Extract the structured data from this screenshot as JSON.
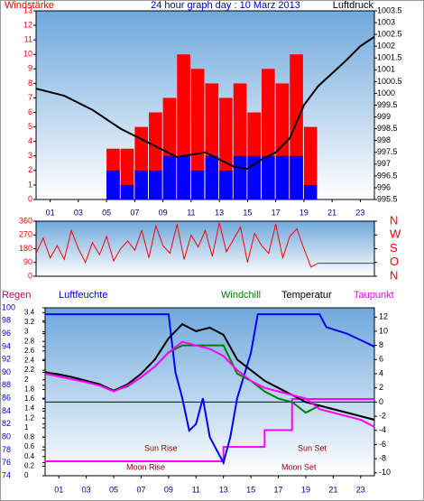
{
  "chart_data": [
    {
      "type": "bar",
      "title": "24 hour graph day : 10 Marz 2013",
      "y_label": "Windstärke",
      "y2_label": "Luftdruck",
      "x": [
        0,
        1,
        2,
        3,
        4,
        5,
        6,
        7,
        8,
        9,
        10,
        11,
        12,
        13,
        14,
        15,
        16,
        17,
        18,
        19,
        20,
        21,
        22,
        23
      ],
      "xlim": [
        0,
        24
      ],
      "xticks": [
        {
          "value": 1,
          "label": "01"
        },
        {
          "value": 3,
          "label": "03"
        },
        {
          "value": 5,
          "label": "05"
        },
        {
          "value": 7,
          "label": "07"
        },
        {
          "value": 9,
          "label": "09"
        },
        {
          "value": 11,
          "label": "11"
        },
        {
          "value": 13,
          "label": "13"
        },
        {
          "value": 15,
          "label": "15"
        },
        {
          "value": 17,
          "label": "17"
        },
        {
          "value": 19,
          "label": "19"
        },
        {
          "value": 21,
          "label": "21"
        },
        {
          "value": 23,
          "label": "23"
        }
      ],
      "ylim": [
        0,
        13
      ],
      "yticks": [
        0,
        1,
        2,
        3,
        4,
        5,
        6,
        7,
        8,
        9,
        10,
        11,
        12,
        13
      ],
      "y2lim": [
        995.5,
        1003.5
      ],
      "y2ticks": [
        995.5,
        996,
        996.5,
        997,
        997.5,
        998,
        998.5,
        999,
        999.5,
        1000,
        1000.5,
        1001,
        1001.5,
        1002,
        1002.5,
        1003,
        1003.5
      ],
      "series": [
        {
          "color": "#ff0000",
          "values": [
            0,
            0,
            0,
            0,
            0,
            3.5,
            3.5,
            5,
            6,
            7,
            10,
            9,
            8,
            7,
            8,
            6,
            9,
            8,
            10,
            5,
            0,
            0,
            0,
            0
          ]
        },
        {
          "color": "#0000ff",
          "values": [
            0,
            0,
            0,
            0,
            0,
            2,
            1,
            2,
            2,
            3,
            3,
            2,
            3,
            2,
            3,
            3,
            3,
            3,
            3,
            1,
            0,
            0,
            0,
            0
          ]
        },
        {
          "type": "line",
          "axis": "y2",
          "color": "#000000",
          "x": [
            0,
            2,
            4,
            5,
            6,
            8,
            10,
            11,
            12,
            13,
            14,
            15,
            16,
            17,
            18,
            19,
            20,
            21,
            22,
            23,
            24
          ],
          "values": [
            1000.2,
            999.9,
            999.3,
            998.9,
            998.5,
            997.9,
            997.3,
            997.4,
            997.5,
            997.2,
            996.9,
            996.8,
            997.2,
            997.5,
            998.1,
            999.5,
            1000.3,
            1000.85,
            1001.4,
            1002.0,
            1002.4
          ]
        }
      ]
    },
    {
      "type": "line",
      "x": [
        0,
        0.5,
        1,
        1.5,
        2,
        2.5,
        3,
        3.5,
        4,
        4.5,
        5,
        5.5,
        6,
        6.5,
        7,
        7.5,
        8,
        8.5,
        9,
        9.5,
        10,
        10.5,
        11,
        11.5,
        12,
        12.5,
        13,
        13.5,
        14,
        14.5,
        15,
        15.5,
        16,
        16.5,
        17,
        17.5,
        18,
        18.5,
        19,
        19.5,
        20,
        20.5,
        21,
        21.5,
        22,
        22.5,
        23,
        23.5,
        24
      ],
      "xlim": [
        0,
        24
      ],
      "ylim": [
        0,
        360
      ],
      "yticks": [
        0,
        90,
        180,
        270,
        360
      ],
      "y2lim": [
        0,
        360
      ],
      "y2ticks": [
        {
          "value": 0,
          "label": "N"
        },
        {
          "value": 90,
          "label": "O"
        },
        {
          "value": 180,
          "label": "S"
        },
        {
          "value": 270,
          "label": "W"
        },
        {
          "value": 360,
          "label": "N"
        }
      ],
      "series": [
        {
          "color": "#ff0000",
          "values": [
            150,
            250,
            120,
            200,
            110,
            300,
            180,
            90,
            220,
            140,
            260,
            100,
            180,
            230,
            170,
            300,
            120,
            330,
            200,
            150,
            340,
            110,
            270,
            190,
            300,
            130,
            350,
            160,
            240,
            320,
            90,
            280,
            200,
            150,
            340,
            120,
            260,
            310,
            180,
            60,
            85,
            85,
            85,
            85,
            85,
            85,
            85,
            85,
            85
          ]
        }
      ]
    },
    {
      "type": "line",
      "xlim": [
        0,
        24
      ],
      "xticks": [
        {
          "value": 1,
          "label": "01"
        },
        {
          "value": 3,
          "label": "03"
        },
        {
          "value": 5,
          "label": "05"
        },
        {
          "value": 7,
          "label": "07"
        },
        {
          "value": 9,
          "label": "09"
        },
        {
          "value": 11,
          "label": "11"
        },
        {
          "value": 13,
          "label": "13"
        },
        {
          "value": 15,
          "label": "15"
        },
        {
          "value": 17,
          "label": "17"
        },
        {
          "value": 19,
          "label": "19"
        },
        {
          "value": 21,
          "label": "21"
        },
        {
          "value": 23,
          "label": "23"
        }
      ],
      "ylim": [
        74,
        100
      ],
      "yticks": [
        74,
        76,
        78,
        80,
        82,
        84,
        86,
        88,
        90,
        92,
        94,
        96,
        98,
        100
      ],
      "rain_lim": [
        0,
        3.5
      ],
      "rain_ticks": [
        0,
        0.2,
        0.4,
        0.6,
        0.8,
        1,
        1.2,
        1.4,
        1.6,
        1.8,
        2,
        2.2,
        2.4,
        2.6,
        2.8,
        3,
        3.2,
        3.4
      ],
      "y2lim": [
        -10.4,
        13.3
      ],
      "y2ticks": [
        -10,
        -8,
        -6,
        -4,
        -2,
        0,
        2,
        4,
        6,
        8,
        10,
        12
      ],
      "annotations": [
        "Sun Rise",
        "Moon Rise",
        "Sun Set",
        "Moon Set"
      ],
      "series": [
        {
          "name": "Regen",
          "color": "#ff00ff",
          "axis": "rain",
          "step": true,
          "x": [
            0,
            1,
            2,
            3,
            4,
            5,
            6,
            7,
            8,
            9,
            10,
            11,
            12,
            13,
            14,
            15,
            16,
            17,
            18,
            19,
            20,
            21,
            22,
            23
          ],
          "values": [
            0.3,
            0.3,
            0.3,
            0.3,
            0.3,
            0.3,
            0.3,
            0.3,
            0.3,
            0.3,
            0.3,
            0.3,
            0.3,
            0.6,
            0.6,
            0.6,
            0.95,
            0.95,
            1.6,
            1.6,
            1.6,
            1.6,
            1.6,
            1.6
          ]
        },
        {
          "name": "Luftfeuchte",
          "color": "#0000ff",
          "axis": "y",
          "x": [
            0,
            9,
            9.5,
            10,
            10.5,
            11,
            11.5,
            12,
            12.5,
            13,
            13.5,
            14,
            15,
            15.5,
            20,
            20.5,
            22,
            23,
            24
          ],
          "values": [
            99,
            99,
            90,
            86,
            81,
            82,
            86,
            80,
            78,
            76,
            80,
            86,
            93,
            99,
            99,
            97,
            96,
            95,
            94
          ]
        },
        {
          "name": "Windchill",
          "color": "#008000",
          "axis": "y2",
          "x": [
            0,
            1,
            2,
            3,
            4,
            5,
            6,
            7,
            8,
            9,
            10,
            11,
            12,
            13,
            14,
            15,
            16,
            17,
            18,
            19,
            20,
            21,
            22,
            23,
            24
          ],
          "values": [
            4.2,
            3.9,
            3.5,
            3.0,
            2.5,
            1.6,
            2.2,
            3.5,
            5,
            7,
            8,
            8,
            8,
            8,
            4,
            3,
            1.5,
            0.5,
            0,
            -1.5,
            -0.5,
            -1,
            -1.5,
            -2,
            -2.5
          ]
        },
        {
          "name": "Temperatur",
          "color": "#000000",
          "axis": "y2",
          "x": [
            0,
            1,
            2,
            3,
            4,
            5,
            6,
            7,
            8,
            9,
            10,
            11,
            12,
            13,
            14,
            15,
            16,
            17,
            18,
            19,
            20,
            21,
            22,
            23,
            24
          ],
          "values": [
            4.2,
            3.9,
            3.5,
            3.0,
            2.5,
            1.6,
            2.5,
            4,
            6,
            9,
            11,
            10,
            10.5,
            9.5,
            6,
            4.5,
            3,
            2,
            1,
            0,
            -0.5,
            -1,
            -1.5,
            -2,
            -2.5
          ]
        },
        {
          "name": "Taupunkt",
          "color": "#ff00ff",
          "axis": "y2",
          "x": [
            0,
            1,
            2,
            3,
            4,
            5,
            6,
            7,
            8,
            9,
            10,
            11,
            12,
            13,
            14,
            15,
            16,
            17,
            18,
            19,
            20,
            21,
            22,
            23,
            24
          ],
          "values": [
            4,
            3.6,
            3.2,
            2.8,
            2.3,
            1.5,
            2.3,
            3.5,
            5,
            7,
            8.5,
            8,
            7.5,
            6.5,
            4.5,
            3,
            2,
            1.5,
            1,
            0.5,
            -1,
            -1.5,
            -2,
            -2.5,
            -3.5
          ]
        }
      ]
    }
  ]
}
